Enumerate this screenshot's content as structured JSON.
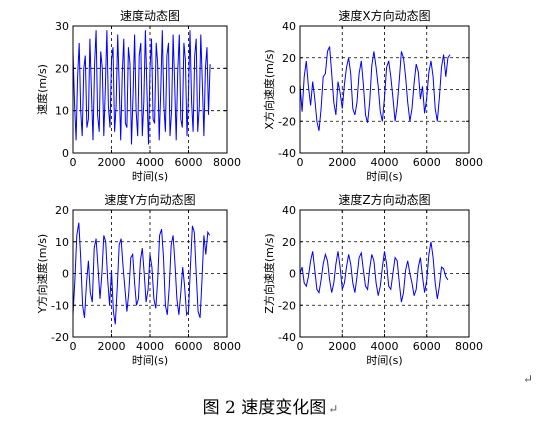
{
  "figure_caption": "图 2  速度变化图",
  "paragraph_mark": "↵",
  "chart_data": [
    {
      "type": "line",
      "title": "速度动态图",
      "xlabel": "时间(s)",
      "ylabel": "速度(m/s)",
      "xlim": [
        0,
        8000
      ],
      "ylim": [
        0,
        30
      ],
      "xticks": [
        0,
        2000,
        4000,
        6000,
        8000
      ],
      "yticks": [
        0,
        10,
        20,
        30
      ],
      "grid": "dashed",
      "series": [
        {
          "color": "#0000ff",
          "x": [
            0,
            80,
            160,
            240,
            320,
            400,
            480,
            560,
            640,
            720,
            800,
            880,
            960,
            1040,
            1120,
            1200,
            1280,
            1360,
            1440,
            1520,
            1600,
            1680,
            1760,
            1840,
            1920,
            2000,
            2080,
            2160,
            2240,
            2320,
            2400,
            2480,
            2560,
            2640,
            2720,
            2800,
            2880,
            2960,
            3040,
            3120,
            3200,
            3280,
            3360,
            3440,
            3520,
            3600,
            3680,
            3760,
            3840,
            3920,
            4000,
            4080,
            4160,
            4240,
            4320,
            4400,
            4480,
            4560,
            4640,
            4720,
            4800,
            4880,
            4960,
            5040,
            5120,
            5200,
            5280,
            5360,
            5440,
            5520,
            5600,
            5680,
            5760,
            5840,
            5920,
            6000,
            6080,
            6160,
            6240,
            6320,
            6400,
            6480,
            6560,
            6640,
            6720,
            6800,
            6880,
            6960,
            7040,
            7120
          ],
          "y": [
            24,
            12,
            3,
            18,
            26,
            10,
            4,
            20,
            23,
            6,
            8,
            27,
            14,
            3,
            21,
            29,
            9,
            5,
            24,
            20,
            4,
            15,
            29,
            11,
            6,
            22,
            25,
            5,
            11,
            28,
            16,
            3,
            19,
            27,
            7,
            6,
            25,
            21,
            2,
            14,
            28,
            10,
            4,
            23,
            26,
            4,
            12,
            29,
            15,
            2,
            20,
            27,
            8,
            7,
            26,
            21,
            3,
            15,
            29,
            11,
            5,
            23,
            26,
            4,
            10,
            28,
            17,
            3,
            19,
            28,
            8,
            6,
            26,
            22,
            4,
            14,
            29,
            12,
            5,
            23,
            27,
            5,
            11,
            28,
            16,
            4,
            20,
            25,
            9,
            21
          ]
        }
      ]
    },
    {
      "type": "line",
      "title": "速度X方向动态图",
      "xlabel": "时间(s)",
      "ylabel": "X方向速度(m/s)",
      "xlim": [
        0,
        8000
      ],
      "ylim": [
        -40,
        40
      ],
      "xticks": [
        0,
        2000,
        4000,
        6000,
        8000
      ],
      "yticks": [
        -40,
        -20,
        0,
        20,
        40
      ],
      "grid": "dashed",
      "series": [
        {
          "color": "#0000ff",
          "x": [
            0,
            100,
            200,
            300,
            400,
            500,
            600,
            700,
            800,
            900,
            1000,
            1100,
            1200,
            1300,
            1400,
            1500,
            1600,
            1700,
            1800,
            1900,
            2000,
            2100,
            2200,
            2300,
            2400,
            2500,
            2600,
            2700,
            2800,
            2900,
            3000,
            3100,
            3200,
            3300,
            3400,
            3500,
            3600,
            3700,
            3800,
            3900,
            4000,
            4100,
            4200,
            4300,
            4400,
            4500,
            4600,
            4700,
            4800,
            4900,
            5000,
            5100,
            5200,
            5300,
            5400,
            5500,
            5600,
            5700,
            5800,
            5900,
            6000,
            6100,
            6200,
            6300,
            6400,
            6500,
            6600,
            6700,
            6800,
            6900,
            7000,
            7100
          ],
          "y": [
            3,
            -14,
            8,
            18,
            2,
            -10,
            5,
            -6,
            -20,
            -26,
            -12,
            8,
            10,
            24,
            27,
            10,
            -8,
            -16,
            5,
            -2,
            -12,
            3,
            14,
            20,
            10,
            -12,
            -16,
            -8,
            10,
            18,
            3,
            -16,
            -21,
            -8,
            15,
            24,
            14,
            2,
            -14,
            -20,
            -5,
            14,
            18,
            8,
            -5,
            -20,
            -10,
            6,
            24,
            20,
            8,
            -8,
            -20,
            -12,
            4,
            16,
            11,
            -6,
            2,
            -15,
            -5,
            11,
            18,
            8,
            -12,
            -20,
            -5,
            14,
            22,
            8,
            20,
            22
          ]
        }
      ]
    },
    {
      "type": "line",
      "title": "速度Y方向动态图",
      "xlabel": "时间(s)",
      "ylabel": "Y方向速度(m/s)",
      "xlim": [
        0,
        8000
      ],
      "ylim": [
        -20,
        20
      ],
      "xticks": [
        0,
        2000,
        4000,
        6000,
        8000
      ],
      "yticks": [
        -20,
        -10,
        0,
        10,
        20
      ],
      "grid": "dashed",
      "series": [
        {
          "color": "#0000ff",
          "x": [
            0,
            100,
            200,
            300,
            400,
            500,
            600,
            700,
            800,
            900,
            1000,
            1100,
            1200,
            1300,
            1400,
            1500,
            1600,
            1700,
            1800,
            1900,
            2000,
            2100,
            2200,
            2300,
            2400,
            2500,
            2600,
            2700,
            2800,
            2900,
            3000,
            3100,
            3200,
            3300,
            3400,
            3500,
            3600,
            3700,
            3800,
            3900,
            4000,
            4100,
            4200,
            4300,
            4400,
            4500,
            4600,
            4700,
            4800,
            4900,
            5000,
            5100,
            5200,
            5300,
            5400,
            5500,
            5600,
            5700,
            5800,
            5900,
            6000,
            6100,
            6200,
            6300,
            6400,
            6500,
            6600,
            6700,
            6800,
            6900,
            7000,
            7100
          ],
          "y": [
            -13,
            -2,
            12,
            16,
            5,
            -10,
            -14,
            -3,
            4,
            -6,
            -9,
            8,
            11,
            2,
            -8,
            0,
            12,
            10,
            -2,
            -10,
            1,
            -12,
            -16,
            -4,
            9,
            11,
            2,
            -5,
            -12,
            -6,
            5,
            6,
            -3,
            -10,
            -8,
            4,
            8,
            0,
            -9,
            -5,
            6,
            2,
            -8,
            -11,
            -2,
            12,
            14,
            5,
            -10,
            -13,
            -4,
            9,
            12,
            3,
            -8,
            -13,
            -6,
            2,
            -4,
            -13,
            -12,
            2,
            15,
            13,
            0,
            -12,
            -14,
            -2,
            12,
            6,
            13,
            12
          ]
        }
      ]
    },
    {
      "type": "line",
      "title": "速度Z方向动态图",
      "xlabel": "时间(s)",
      "ylabel": "Z方向速度(m/s)",
      "xlim": [
        0,
        8000
      ],
      "ylim": [
        -40,
        40
      ],
      "xticks": [
        0,
        2000,
        4000,
        6000,
        8000
      ],
      "yticks": [
        -40,
        -20,
        0,
        20,
        40
      ],
      "grid": "dashed",
      "series": [
        {
          "color": "#0000ff",
          "x": [
            0,
            100,
            200,
            300,
            400,
            500,
            600,
            700,
            800,
            900,
            1000,
            1100,
            1200,
            1300,
            1400,
            1500,
            1600,
            1700,
            1800,
            1900,
            2000,
            2100,
            2200,
            2300,
            2400,
            2500,
            2600,
            2700,
            2800,
            2900,
            3000,
            3100,
            3200,
            3300,
            3400,
            3500,
            3600,
            3700,
            3800,
            3900,
            4000,
            4100,
            4200,
            4300,
            4400,
            4500,
            4600,
            4700,
            4800,
            4900,
            5000,
            5100,
            5200,
            5300,
            5400,
            5500,
            5600,
            5700,
            5800,
            5900,
            6000,
            6100,
            6200,
            6300,
            6400,
            6500,
            6600,
            6700,
            6800,
            6900,
            7000
          ],
          "y": [
            0,
            4,
            -6,
            -8,
            -2,
            8,
            14,
            2,
            -10,
            -12,
            -4,
            6,
            12,
            8,
            -4,
            -12,
            -6,
            6,
            14,
            4,
            -10,
            -6,
            4,
            12,
            6,
            -6,
            -12,
            -2,
            10,
            13,
            2,
            -8,
            -10,
            3,
            12,
            8,
            -6,
            -14,
            -8,
            4,
            14,
            6,
            -8,
            -10,
            0,
            10,
            8,
            -6,
            -18,
            -12,
            2,
            8,
            0,
            -6,
            -14,
            -10,
            4,
            10,
            -2,
            -12,
            -4,
            12,
            20,
            10,
            -6,
            -16,
            -8,
            4,
            3,
            -2,
            -4
          ]
        }
      ]
    }
  ]
}
